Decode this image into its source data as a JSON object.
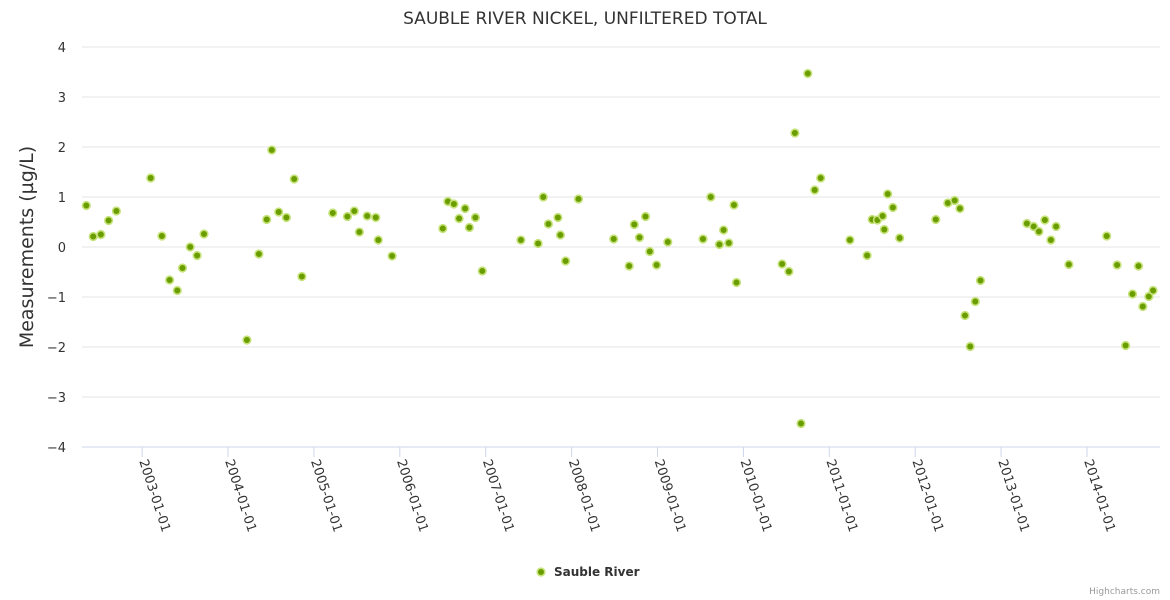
{
  "chart_data": {
    "type": "scatter",
    "title": "SAUBLE RIVER NICKEL, UNFILTERED TOTAL",
    "ylabel": "Measurements (µg/L)",
    "xlabel": "",
    "ylim": [
      -4,
      4
    ],
    "yticks": [
      4,
      3,
      2,
      1,
      0,
      -1,
      -2,
      -3,
      -4
    ],
    "ytick_labels": [
      "4",
      "3",
      "2",
      "1",
      "0",
      "−1",
      "−2",
      "−3",
      "−4"
    ],
    "xlim": [
      2002.3,
      2014.85
    ],
    "xticks": [
      2003,
      2004,
      2005,
      2006,
      2007,
      2008,
      2009,
      2010,
      2011,
      2012,
      2013,
      2014
    ],
    "xtick_labels": [
      "2003-01-01",
      "2004-01-01",
      "2005-01-01",
      "2006-01-01",
      "2007-01-01",
      "2008-01-01",
      "2009-01-01",
      "2010-01-01",
      "2011-01-01",
      "2012-01-01",
      "2013-01-01",
      "2014-01-01"
    ],
    "legend": {
      "position": "bottom-center"
    },
    "credits": "Highcharts.com",
    "series": [
      {
        "name": "Sauble River",
        "color": "#6a9d00",
        "x": [
          2002.35,
          2002.43,
          2002.52,
          2002.61,
          2002.7,
          2003.1,
          2003.23,
          2003.32,
          2003.41,
          2003.47,
          2003.56,
          2003.64,
          2003.72,
          2004.22,
          2004.36,
          2004.45,
          2004.51,
          2004.59,
          2004.68,
          2004.77,
          2004.86,
          2005.22,
          2005.39,
          2005.47,
          2005.53,
          2005.62,
          2005.72,
          2005.75,
          2005.91,
          2006.5,
          2006.56,
          2006.63,
          2006.69,
          2006.76,
          2006.81,
          2006.88,
          2006.96,
          2007.41,
          2007.61,
          2007.67,
          2007.73,
          2007.84,
          2007.87,
          2007.93,
          2008.08,
          2008.49,
          2008.67,
          2008.73,
          2008.79,
          2008.86,
          2008.91,
          2008.99,
          2009.12,
          2009.53,
          2009.62,
          2009.72,
          2009.77,
          2009.83,
          2009.89,
          2009.92,
          2010.45,
          2010.53,
          2010.6,
          2010.67,
          2010.75,
          2010.83,
          2010.9,
          2011.24,
          2011.44,
          2011.5,
          2011.56,
          2011.62,
          2011.64,
          2011.68,
          2011.74,
          2011.82,
          2012.24,
          2012.38,
          2012.46,
          2012.52,
          2012.58,
          2012.64,
          2012.7,
          2012.76,
          2013.3,
          2013.38,
          2013.44,
          2013.51,
          2013.58,
          2013.64,
          2013.79,
          2014.23,
          2014.35,
          2014.45,
          2014.53,
          2014.6,
          2014.65,
          2014.72,
          2014.77
        ],
        "y": [
          0.83,
          0.21,
          0.25,
          0.53,
          0.72,
          1.38,
          0.22,
          -0.66,
          -0.87,
          -0.42,
          0.0,
          -0.17,
          0.26,
          -1.86,
          -0.14,
          0.55,
          1.94,
          0.7,
          0.59,
          1.36,
          -0.59,
          0.68,
          0.61,
          0.72,
          0.3,
          0.62,
          0.59,
          0.14,
          -0.18,
          0.37,
          0.91,
          0.86,
          0.57,
          0.77,
          0.39,
          0.59,
          -0.48,
          0.14,
          0.07,
          1.0,
          0.46,
          0.59,
          0.24,
          -0.28,
          0.96,
          0.16,
          -0.38,
          0.45,
          0.19,
          0.61,
          -0.09,
          -0.36,
          0.1,
          0.16,
          1.0,
          0.05,
          0.34,
          0.08,
          0.84,
          -0.71,
          -0.34,
          -0.49,
          2.28,
          -3.53,
          3.47,
          1.14,
          1.38,
          0.14,
          -0.17,
          0.55,
          0.54,
          0.62,
          0.35,
          1.06,
          0.79,
          0.18,
          0.55,
          0.88,
          0.93,
          0.77,
          -1.37,
          -1.99,
          -1.09,
          -0.67,
          0.47,
          0.41,
          0.31,
          0.54,
          0.14,
          0.41,
          -0.35,
          0.22,
          -0.36,
          -1.97,
          -0.94,
          -0.38,
          -1.19,
          -0.99,
          -0.87
        ]
      }
    ]
  }
}
